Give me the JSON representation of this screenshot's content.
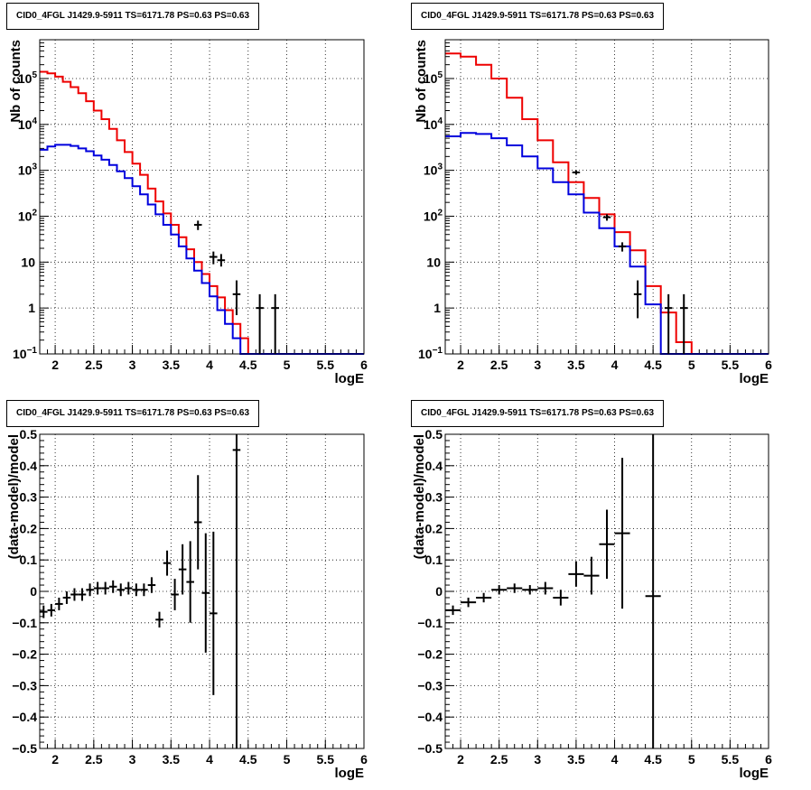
{
  "chart_data": [
    {
      "type": "line",
      "title": "CID0_4FGL J1429.9-5911 TS=6171.78 PS=0.63 PS=0.63",
      "xlabel": "logE",
      "ylabel": "Nb of counts",
      "xlim": [
        1.8,
        6.0
      ],
      "ylim": [
        0.1,
        700000
      ],
      "yscale": "log",
      "grid": true,
      "xticks": [
        "2",
        "2.5",
        "3",
        "3.5",
        "4",
        "4.5",
        "5",
        "5.5",
        "6"
      ],
      "yticks": [
        {
          "v": 0.1,
          "base": "10",
          "exp": "−1"
        },
        {
          "v": 1,
          "label": "1"
        },
        {
          "v": 10,
          "label": "10"
        },
        {
          "v": 100,
          "base": "10",
          "exp": "2"
        },
        {
          "v": 1000,
          "base": "10",
          "exp": "3"
        },
        {
          "v": 10000,
          "base": "10",
          "exp": "4"
        },
        {
          "v": 100000,
          "base": "10",
          "exp": "5"
        }
      ],
      "bin_edges": [
        1.8,
        1.9,
        2.0,
        2.1,
        2.2,
        2.3,
        2.4,
        2.5,
        2.6,
        2.7,
        2.8,
        2.9,
        3.0,
        3.1,
        3.2,
        3.3,
        3.4,
        3.5,
        3.6,
        3.7,
        3.8,
        3.9,
        4.0,
        4.1,
        4.2,
        4.3,
        4.4,
        4.5,
        4.6,
        4.7,
        4.8,
        4.9,
        5.0,
        5.1,
        5.2,
        5.3,
        5.4,
        5.5,
        5.6,
        5.7,
        5.8,
        5.9,
        6.0
      ],
      "series": [
        {
          "color": "#ee0000",
          "values": [
            140000,
            130000,
            110000,
            85000,
            65000,
            48000,
            32000,
            20000,
            13000,
            8000,
            4500,
            2500,
            1400,
            800,
            400,
            210,
            115,
            65,
            35,
            19,
            10,
            5.5,
            3,
            1.7,
            0.9,
            0.45,
            0.22,
            0.1,
            0.1,
            0.1,
            0.1,
            0.1,
            0.1,
            0.1,
            0.1,
            0.1,
            0.1,
            0.1,
            0.1,
            0.1,
            0.1,
            0.1
          ]
        },
        {
          "color": "#0000dd",
          "values": [
            2800,
            3300,
            3600,
            3600,
            3400,
            3000,
            2600,
            2100,
            1700,
            1300,
            950,
            680,
            450,
            300,
            180,
            110,
            65,
            40,
            22,
            12,
            6.5,
            3.5,
            1.8,
            0.9,
            0.45,
            0.22,
            0.1,
            0.1,
            0.1,
            0.1,
            0.1,
            0.1,
            0.1,
            0.1,
            0.1,
            0.1,
            0.1,
            0.1,
            0.1,
            0.1,
            0.1,
            0.1
          ]
        }
      ],
      "data_points": [
        {
          "x": 3.85,
          "y": 65,
          "ylo": 50,
          "yhi": 80
        },
        {
          "x": 4.05,
          "y": 13,
          "ylo": 9,
          "yhi": 17
        },
        {
          "x": 4.15,
          "y": 11,
          "ylo": 8,
          "yhi": 15
        },
        {
          "x": 4.35,
          "y": 2,
          "ylo": 0.7,
          "yhi": 4
        },
        {
          "x": 4.65,
          "y": 1,
          "ylo": 0.1,
          "yhi": 2
        },
        {
          "x": 4.85,
          "y": 1,
          "ylo": 0.1,
          "yhi": 2
        }
      ]
    },
    {
      "type": "line",
      "title": "CID0_4FGL J1429.9-5911 TS=6171.78 PS=0.63 PS=0.63",
      "xlabel": "logE",
      "ylabel": "Nb of counts",
      "xlim": [
        1.8,
        6.0
      ],
      "ylim": [
        0.1,
        700000
      ],
      "yscale": "log",
      "grid": true,
      "xticks": [
        "2",
        "2.5",
        "3",
        "3.5",
        "4",
        "4.5",
        "5",
        "5.5",
        "6"
      ],
      "yticks": [
        {
          "v": 0.1,
          "base": "10",
          "exp": "−1"
        },
        {
          "v": 1,
          "label": "1"
        },
        {
          "v": 10,
          "label": "10"
        },
        {
          "v": 100,
          "base": "10",
          "exp": "2"
        },
        {
          "v": 1000,
          "base": "10",
          "exp": "3"
        },
        {
          "v": 10000,
          "base": "10",
          "exp": "4"
        },
        {
          "v": 100000,
          "base": "10",
          "exp": "5"
        }
      ],
      "bin_edges": [
        1.8,
        2.0,
        2.2,
        2.4,
        2.6,
        2.8,
        3.0,
        3.2,
        3.4,
        3.6,
        3.8,
        4.0,
        4.2,
        4.4,
        4.6,
        4.8,
        5.0,
        5.2,
        5.4,
        5.6,
        5.8,
        6.0
      ],
      "series": [
        {
          "color": "#ee0000",
          "values": [
            350000,
            300000,
            200000,
            100000,
            38000,
            13000,
            4500,
            1500,
            550,
            250,
            110,
            45,
            18,
            3,
            0.8,
            0.18,
            0.1,
            0.1,
            0.1,
            0.1,
            0.1
          ]
        },
        {
          "color": "#0000dd",
          "values": [
            5500,
            6500,
            6200,
            5000,
            3500,
            2000,
            1100,
            550,
            300,
            120,
            55,
            22,
            8,
            1.2,
            0.1,
            0.1,
            0.1,
            0.1,
            0.1,
            0.1,
            0.1
          ]
        }
      ],
      "data_points": [
        {
          "x": 3.5,
          "y": 900,
          "ylo": 800,
          "yhi": 1000
        },
        {
          "x": 3.9,
          "y": 95,
          "ylo": 80,
          "yhi": 110
        },
        {
          "x": 4.1,
          "y": 22,
          "ylo": 17,
          "yhi": 27
        },
        {
          "x": 4.3,
          "y": 2,
          "ylo": 0.6,
          "yhi": 4
        },
        {
          "x": 4.7,
          "y": 1,
          "ylo": 0.1,
          "yhi": 2
        },
        {
          "x": 4.9,
          "y": 1,
          "ylo": 0.1,
          "yhi": 2
        }
      ]
    },
    {
      "type": "scatter",
      "title": "CID0_4FGL J1429.9-5911 TS=6171.78 PS=0.63 PS=0.63",
      "xlabel": "logE",
      "ylabel": "(data-model)/model",
      "xlim": [
        1.8,
        6.0
      ],
      "ylim": [
        -0.5,
        0.5
      ],
      "grid": true,
      "xticks": [
        "2",
        "2.5",
        "3",
        "3.5",
        "4",
        "4.5",
        "5",
        "5.5",
        "6"
      ],
      "yticks": [
        "−0.5",
        "−0.4",
        "−0.3",
        "−0.2",
        "−0.1",
        "0",
        "0.1",
        "0.2",
        "0.3",
        "0.4",
        "0.5"
      ],
      "xerr": 0.05,
      "points": [
        {
          "x": 1.85,
          "y": -0.065,
          "err": 0.02
        },
        {
          "x": 1.95,
          "y": -0.06,
          "err": 0.02
        },
        {
          "x": 2.05,
          "y": -0.04,
          "err": 0.02
        },
        {
          "x": 2.15,
          "y": -0.02,
          "err": 0.02
        },
        {
          "x": 2.25,
          "y": -0.01,
          "err": 0.02
        },
        {
          "x": 2.35,
          "y": -0.01,
          "err": 0.02
        },
        {
          "x": 2.45,
          "y": 0.005,
          "err": 0.02
        },
        {
          "x": 2.55,
          "y": 0.01,
          "err": 0.02
        },
        {
          "x": 2.65,
          "y": 0.01,
          "err": 0.02
        },
        {
          "x": 2.75,
          "y": 0.015,
          "err": 0.02
        },
        {
          "x": 2.85,
          "y": 0.005,
          "err": 0.02
        },
        {
          "x": 2.95,
          "y": 0.01,
          "err": 0.02
        },
        {
          "x": 3.05,
          "y": 0.005,
          "err": 0.02
        },
        {
          "x": 3.15,
          "y": 0.005,
          "err": 0.02
        },
        {
          "x": 3.25,
          "y": 0.02,
          "err": 0.025
        },
        {
          "x": 3.35,
          "y": -0.09,
          "err": 0.025
        },
        {
          "x": 3.45,
          "y": 0.09,
          "err": 0.04
        },
        {
          "x": 3.55,
          "y": -0.01,
          "err": 0.05
        },
        {
          "x": 3.65,
          "y": 0.07,
          "err": 0.08
        },
        {
          "x": 3.75,
          "y": 0.03,
          "err": 0.13
        },
        {
          "x": 3.85,
          "y": 0.22,
          "err": 0.15
        },
        {
          "x": 3.95,
          "y": -0.005,
          "err": 0.19
        },
        {
          "x": 4.05,
          "y": -0.07,
          "err": 0.26
        },
        {
          "x": 4.35,
          "y": 0.45,
          "err": 1.0
        }
      ]
    },
    {
      "type": "scatter",
      "title": "CID0_4FGL J1429.9-5911 TS=6171.78 PS=0.63 PS=0.63",
      "xlabel": "logE",
      "ylabel": "(data-model)/model",
      "xlim": [
        1.8,
        6.0
      ],
      "ylim": [
        -0.5,
        0.5
      ],
      "grid": true,
      "xticks": [
        "2",
        "2.5",
        "3",
        "3.5",
        "4",
        "4.5",
        "5",
        "5.5",
        "6"
      ],
      "yticks": [
        "−0.5",
        "−0.4",
        "−0.3",
        "−0.2",
        "−0.1",
        "0",
        "0.1",
        "0.2",
        "0.3",
        "0.4",
        "0.5"
      ],
      "xerr": 0.1,
      "points": [
        {
          "x": 1.9,
          "y": -0.06,
          "err": 0.015
        },
        {
          "x": 2.1,
          "y": -0.035,
          "err": 0.015
        },
        {
          "x": 2.3,
          "y": -0.02,
          "err": 0.015
        },
        {
          "x": 2.5,
          "y": 0.005,
          "err": 0.015
        },
        {
          "x": 2.7,
          "y": 0.01,
          "err": 0.015
        },
        {
          "x": 2.9,
          "y": 0.005,
          "err": 0.015
        },
        {
          "x": 3.1,
          "y": 0.01,
          "err": 0.02
        },
        {
          "x": 3.3,
          "y": -0.02,
          "err": 0.025
        },
        {
          "x": 3.5,
          "y": 0.055,
          "err": 0.04
        },
        {
          "x": 3.7,
          "y": 0.05,
          "err": 0.06
        },
        {
          "x": 3.9,
          "y": 0.15,
          "err": 0.11
        },
        {
          "x": 4.1,
          "y": 0.185,
          "err": 0.24
        },
        {
          "x": 4.5,
          "y": -0.015,
          "err": 1.0
        }
      ]
    }
  ]
}
